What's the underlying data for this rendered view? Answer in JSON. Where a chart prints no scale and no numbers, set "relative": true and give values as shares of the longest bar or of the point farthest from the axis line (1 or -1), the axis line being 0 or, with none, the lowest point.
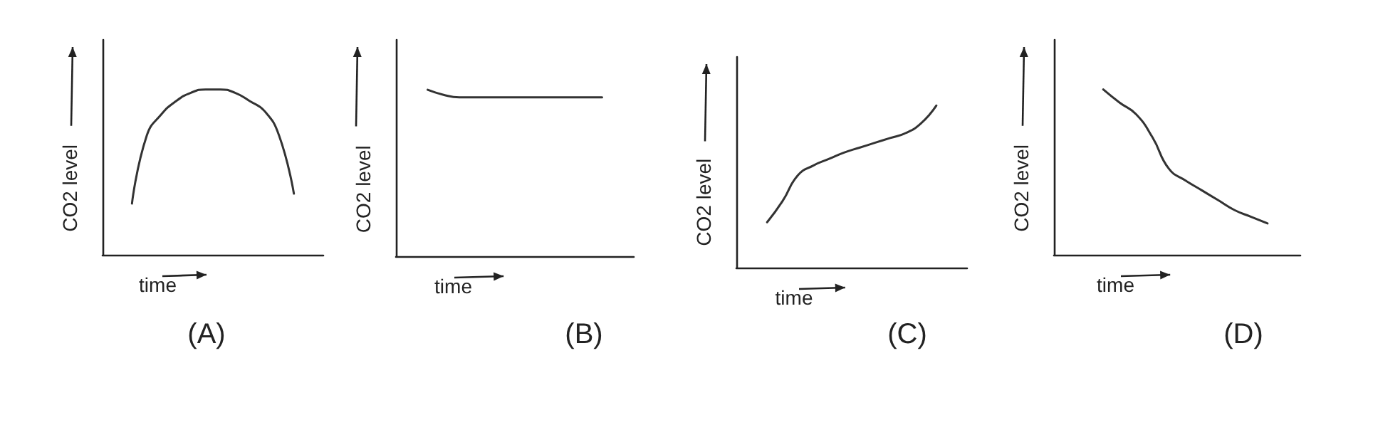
{
  "chart_data": [
    {
      "type": "line",
      "title": "(A)",
      "xlabel": "time",
      "ylabel": "CO2 level",
      "relative": true,
      "categories": [
        null,
        null,
        null,
        null,
        null,
        null,
        null,
        null,
        null,
        null,
        null,
        null,
        null,
        null,
        null,
        null
      ],
      "series": [
        {
          "color": "#333333",
          "values": [
            null,
            null,
            0.31,
            0.72,
            0.85,
            0.93,
            0.98,
            1,
            1,
            0.98,
            0.93,
            0.87,
            0.72,
            0.37,
            null,
            null
          ]
        }
      ]
    },
    {
      "type": "line",
      "title": "(B)",
      "xlabel": "time",
      "ylabel": "CO2 level",
      "relative": true,
      "categories": [
        null,
        null,
        null,
        null,
        null,
        null,
        null,
        null,
        null,
        null,
        null,
        null,
        null,
        null,
        null,
        null
      ],
      "series": [
        {
          "color": "#333333",
          "values": [
            null,
            null,
            1,
            0.97,
            0.955,
            0.955,
            0.955,
            0.955,
            0.955,
            0.955,
            0.955,
            0.955,
            0.955,
            0.955,
            null,
            null
          ]
        }
      ]
    },
    {
      "type": "line",
      "title": "(C)",
      "xlabel": "time",
      "ylabel": "CO2 level",
      "relative": true,
      "categories": [
        null,
        null,
        null,
        null,
        null,
        null,
        null,
        null,
        null,
        null,
        null,
        null,
        null,
        null,
        null,
        null
      ],
      "series": [
        {
          "color": "#333333",
          "values": [
            null,
            null,
            0.28,
            0.41,
            0.57,
            0.63,
            0.67,
            0.71,
            0.74,
            0.77,
            0.8,
            0.83,
            0.89,
            1,
            null,
            null
          ]
        }
      ]
    },
    {
      "type": "line",
      "title": "(D)",
      "xlabel": "time",
      "ylabel": "CO2 level",
      "relative": true,
      "categories": [
        null,
        null,
        null,
        null,
        null,
        null,
        null,
        null,
        null,
        null,
        null,
        null,
        null,
        null,
        null,
        null
      ],
      "series": [
        {
          "color": "#333333",
          "values": [
            null,
            null,
            null,
            1,
            0.92,
            0.85,
            0.71,
            0.52,
            0.45,
            0.39,
            0.33,
            0.27,
            0.23,
            0.19,
            null,
            null
          ]
        }
      ]
    }
  ]
}
